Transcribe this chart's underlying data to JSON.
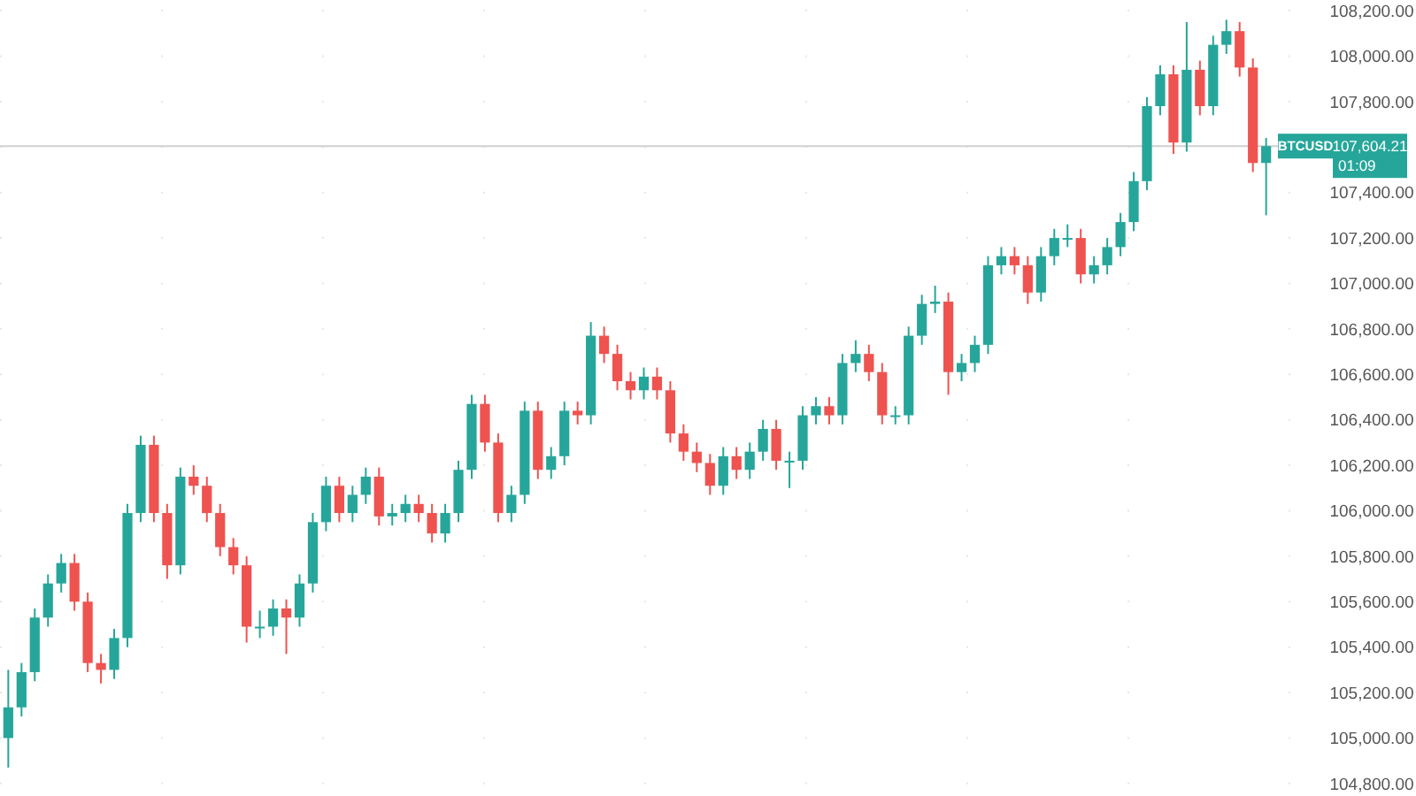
{
  "chart_data": {
    "type": "candlestick",
    "categories": [
      null,
      null,
      null,
      null,
      null,
      null,
      null,
      null,
      null,
      null,
      null,
      null,
      null,
      null,
      null,
      null,
      null,
      null,
      null,
      null,
      null,
      null,
      null,
      null,
      null,
      null,
      null,
      null,
      null,
      null,
      null,
      null,
      null,
      null,
      null,
      null,
      null,
      null,
      null,
      null,
      null,
      null,
      null,
      null,
      null,
      null,
      null,
      null,
      null,
      null,
      null,
      null,
      null,
      null,
      null,
      null,
      null,
      null,
      null,
      null,
      null,
      null,
      null,
      null,
      null,
      null,
      null,
      null,
      null,
      null,
      null,
      null,
      null,
      null,
      null,
      null,
      null,
      null,
      null,
      null,
      null,
      null,
      null,
      null,
      null,
      null,
      null,
      null,
      null,
      null,
      null,
      null,
      null,
      null,
      null,
      null
    ],
    "ohlc": [
      [
        105000,
        105300,
        104870,
        105135
      ],
      [
        105135,
        105330,
        105095,
        105290
      ],
      [
        105290,
        105570,
        105250,
        105530
      ],
      [
        105530,
        105720,
        105490,
        105680
      ],
      [
        105680,
        105810,
        105640,
        105770
      ],
      [
        105770,
        105810,
        105560,
        105600
      ],
      [
        105600,
        105640,
        105290,
        105330
      ],
      [
        105330,
        105370,
        105240,
        105300
      ],
      [
        105300,
        105480,
        105260,
        105440
      ],
      [
        105440,
        106030,
        105400,
        105990
      ],
      [
        105990,
        106330,
        105950,
        106290
      ],
      [
        106290,
        106330,
        105950,
        105990
      ],
      [
        105990,
        106030,
        105700,
        105760
      ],
      [
        105760,
        106190,
        105720,
        106150
      ],
      [
        106150,
        106200,
        106070,
        106110
      ],
      [
        106110,
        106150,
        105950,
        105990
      ],
      [
        105990,
        106030,
        105800,
        105840
      ],
      [
        105840,
        105880,
        105720,
        105760
      ],
      [
        105760,
        105800,
        105420,
        105490
      ],
      [
        105490,
        105560,
        105440,
        105490
      ],
      [
        105490,
        105610,
        105450,
        105570
      ],
      [
        105570,
        105610,
        105370,
        105530
      ],
      [
        105530,
        105720,
        105490,
        105680
      ],
      [
        105680,
        105990,
        105640,
        105950
      ],
      [
        105950,
        106150,
        105910,
        106110
      ],
      [
        106110,
        106150,
        105950,
        105990
      ],
      [
        105990,
        106110,
        105950,
        106070
      ],
      [
        106070,
        106190,
        106030,
        106150
      ],
      [
        106150,
        106190,
        105935,
        105975
      ],
      [
        105975,
        106030,
        105935,
        105990
      ],
      [
        105990,
        106070,
        105950,
        106030
      ],
      [
        106030,
        106070,
        105950,
        105990
      ],
      [
        105990,
        106030,
        105860,
        105900
      ],
      [
        105900,
        106030,
        105860,
        105990
      ],
      [
        105990,
        106220,
        105950,
        106180
      ],
      [
        106180,
        106510,
        106140,
        106470
      ],
      [
        106470,
        106510,
        106260,
        106300
      ],
      [
        106300,
        106340,
        105950,
        105990
      ],
      [
        105990,
        106110,
        105950,
        106070
      ],
      [
        106070,
        106480,
        106030,
        106440
      ],
      [
        106440,
        106480,
        106140,
        106180
      ],
      [
        106180,
        106280,
        106140,
        106240
      ],
      [
        106240,
        106480,
        106200,
        106440
      ],
      [
        106440,
        106480,
        106380,
        106420
      ],
      [
        106420,
        106830,
        106380,
        106770
      ],
      [
        106770,
        106810,
        106650,
        106690
      ],
      [
        106690,
        106730,
        106530,
        106570
      ],
      [
        106570,
        106610,
        106490,
        106530
      ],
      [
        106530,
        106630,
        106490,
        106590
      ],
      [
        106590,
        106630,
        106490,
        106530
      ],
      [
        106530,
        106570,
        106300,
        106340
      ],
      [
        106340,
        106380,
        106220,
        106260
      ],
      [
        106260,
        106300,
        106170,
        106210
      ],
      [
        106210,
        106250,
        106070,
        106110
      ],
      [
        106110,
        106280,
        106070,
        106240
      ],
      [
        106240,
        106280,
        106140,
        106180
      ],
      [
        106180,
        106300,
        106140,
        106260
      ],
      [
        106260,
        106400,
        106220,
        106360
      ],
      [
        106360,
        106400,
        106180,
        106220
      ],
      [
        106220,
        106260,
        106100,
        106220
      ],
      [
        106220,
        106460,
        106180,
        106420
      ],
      [
        106420,
        106500,
        106380,
        106460
      ],
      [
        106460,
        106500,
        106380,
        106420
      ],
      [
        106420,
        106690,
        106380,
        106650
      ],
      [
        106650,
        106750,
        106610,
        106690
      ],
      [
        106690,
        106730,
        106570,
        106610
      ],
      [
        106610,
        106650,
        106380,
        106420
      ],
      [
        106420,
        106460,
        106380,
        106420
      ],
      [
        106420,
        106810,
        106380,
        106770
      ],
      [
        106770,
        106950,
        106730,
        106910
      ],
      [
        106910,
        106990,
        106870,
        106920
      ],
      [
        106920,
        106960,
        106510,
        106610
      ],
      [
        106610,
        106690,
        106570,
        106650
      ],
      [
        106650,
        106770,
        106610,
        106730
      ],
      [
        106730,
        107120,
        106690,
        107080
      ],
      [
        107080,
        107160,
        107040,
        107120
      ],
      [
        107120,
        107160,
        107040,
        107080
      ],
      [
        107080,
        107120,
        106910,
        106960
      ],
      [
        106960,
        107160,
        106920,
        107120
      ],
      [
        107120,
        107240,
        107080,
        107200
      ],
      [
        107200,
        107260,
        107160,
        107200
      ],
      [
        107200,
        107240,
        107000,
        107040
      ],
      [
        107040,
        107120,
        107000,
        107080
      ],
      [
        107080,
        107200,
        107040,
        107160
      ],
      [
        107160,
        107310,
        107120,
        107270
      ],
      [
        107270,
        107490,
        107230,
        107450
      ],
      [
        107450,
        107820,
        107410,
        107780
      ],
      [
        107780,
        107960,
        107740,
        107920
      ],
      [
        107920,
        107960,
        107570,
        107620
      ],
      [
        107620,
        108150,
        107580,
        107940
      ],
      [
        107940,
        107980,
        107740,
        107780
      ],
      [
        107780,
        108090,
        107740,
        108050
      ],
      [
        108050,
        108160,
        108010,
        108110
      ],
      [
        108110,
        108150,
        107910,
        107950
      ],
      [
        107950,
        107990,
        107490,
        107530
      ],
      [
        107530,
        107640,
        107300,
        107604.21
      ]
    ],
    "colors": [
      "#26a69a",
      "#26a69a",
      "#26a69a",
      "#26a69a",
      "#26a69a",
      "#ef5350",
      "#ef5350",
      "#ef5350",
      "#26a69a",
      "#26a69a",
      "#26a69a",
      "#ef5350",
      "#ef5350",
      "#26a69a",
      "#ef5350",
      "#ef5350",
      "#ef5350",
      "#ef5350",
      "#ef5350",
      "#26a69a",
      "#26a69a",
      "#ef5350",
      "#26a69a",
      "#26a69a",
      "#26a69a",
      "#ef5350",
      "#26a69a",
      "#26a69a",
      "#ef5350",
      "#26a69a",
      "#26a69a",
      "#ef5350",
      "#ef5350",
      "#26a69a",
      "#26a69a",
      "#26a69a",
      "#ef5350",
      "#ef5350",
      "#26a69a",
      "#26a69a",
      "#ef5350",
      "#26a69a",
      "#26a69a",
      "#ef5350",
      "#26a69a",
      "#ef5350",
      "#ef5350",
      "#ef5350",
      "#26a69a",
      "#ef5350",
      "#ef5350",
      "#ef5350",
      "#ef5350",
      "#ef5350",
      "#26a69a",
      "#ef5350",
      "#26a69a",
      "#26a69a",
      "#ef5350",
      "#26a69a",
      "#26a69a",
      "#26a69a",
      "#ef5350",
      "#26a69a",
      "#26a69a",
      "#ef5350",
      "#ef5350",
      "#26a69a",
      "#26a69a",
      "#26a69a",
      "#26a69a",
      "#ef5350",
      "#26a69a",
      "#26a69a",
      "#26a69a",
      "#26a69a",
      "#ef5350",
      "#ef5350",
      "#26a69a",
      "#26a69a",
      "#26a69a",
      "#ef5350",
      "#26a69a",
      "#26a69a",
      "#26a69a",
      "#26a69a",
      "#26a69a",
      "#26a69a",
      "#ef5350",
      "#26a69a",
      "#ef5350",
      "#26a69a",
      "#26a69a",
      "#ef5350",
      "#ef5350",
      "#26a69a"
    ],
    "ylim": [
      104745,
      108247
    ],
    "yticks": [
      {
        "value": 104800,
        "label": "104,800.00"
      },
      {
        "value": 105000,
        "label": "105,000.00"
      },
      {
        "value": 105200,
        "label": "105,200.00"
      },
      {
        "value": 105400,
        "label": "105,400.00"
      },
      {
        "value": 105600,
        "label": "105,600.00"
      },
      {
        "value": 105800,
        "label": "105,800.00"
      },
      {
        "value": 106000,
        "label": "106,000.00"
      },
      {
        "value": 106200,
        "label": "106,200.00"
      },
      {
        "value": 106400,
        "label": "106,400.00"
      },
      {
        "value": 106600,
        "label": "106,600.00"
      },
      {
        "value": 106800,
        "label": "106,800.00"
      },
      {
        "value": 107000,
        "label": "107,000.00"
      },
      {
        "value": 107200,
        "label": "107,200.00"
      },
      {
        "value": 107400,
        "label": "107,400.00"
      },
      {
        "value": 107600,
        "label": null
      },
      {
        "value": 107800,
        "label": "107,800.00"
      },
      {
        "value": 108000,
        "label": "108,000.00"
      },
      {
        "value": 108200,
        "label": "108,200.00"
      }
    ],
    "ref_lines": [
      {
        "axis": "y",
        "value": 107604.21,
        "label": "107,604.21",
        "color": "#d0d0d0"
      }
    ],
    "annotations": [
      "BTCUSD",
      "01:09"
    ],
    "grid": "y"
  }
}
